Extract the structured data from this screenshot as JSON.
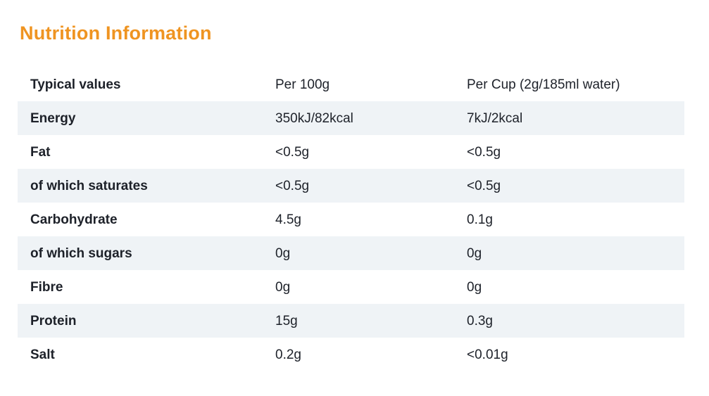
{
  "title": "Nutrition Information",
  "colors": {
    "accent_orange": "#ef9421",
    "row_shade": "#eff3f6",
    "text": "#1d2129",
    "background": "#ffffff"
  },
  "table": {
    "headers": {
      "col_label": "Typical values",
      "col_per_100g": "Per 100g",
      "col_per_cup": "Per Cup (2g/185ml water)"
    },
    "rows": [
      {
        "label": "Energy",
        "per_100g": "350kJ/82kcal",
        "per_cup": "7kJ/2kcal"
      },
      {
        "label": "Fat",
        "per_100g": "<0.5g",
        "per_cup": "<0.5g"
      },
      {
        "label": "of which saturates",
        "per_100g": "<0.5g",
        "per_cup": "<0.5g"
      },
      {
        "label": "Carbohydrate",
        "per_100g": "4.5g",
        "per_cup": "0.1g"
      },
      {
        "label": "of which sugars",
        "per_100g": "0g",
        "per_cup": "0g"
      },
      {
        "label": "Fibre",
        "per_100g": "0g",
        "per_cup": "0g"
      },
      {
        "label": "Protein",
        "per_100g": "15g",
        "per_cup": "0.3g"
      },
      {
        "label": "Salt",
        "per_100g": "0.2g",
        "per_cup": "<0.01g"
      }
    ]
  }
}
